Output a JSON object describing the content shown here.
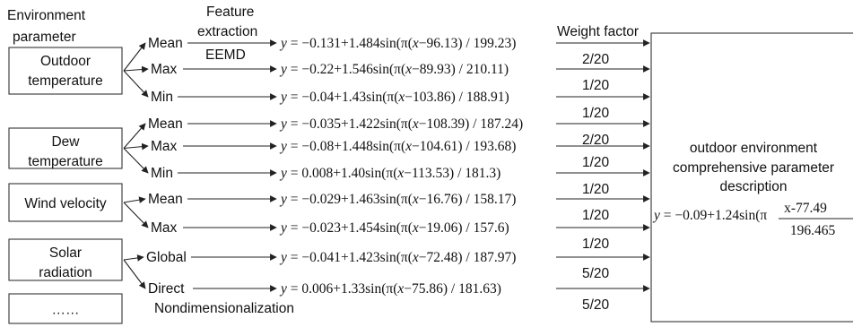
{
  "headers": {
    "env_param_line1": "Environment",
    "env_param_line2": "parameter",
    "feature_line1": "Feature",
    "feature_line2": "extraction",
    "eemd": "EEMD",
    "weight_factor": "Weight factor",
    "nondim": "Nondimensionalization"
  },
  "parameters": [
    {
      "line1": "Outdoor",
      "line2": "temperature"
    },
    {
      "line1": "Dew",
      "line2": "temperature"
    },
    {
      "line1": "Wind velocity",
      "line2": ""
    },
    {
      "line1": "Solar",
      "line2": "radiation"
    },
    {
      "line1": "……",
      "line2": ""
    }
  ],
  "features": [
    "Mean",
    "Max",
    "Min",
    "Mean",
    "Max",
    "Min",
    "Mean",
    "Max",
    "Global",
    "Direct"
  ],
  "equations": [
    {
      "a": "−0.131",
      "b": "1.484",
      "c": "96.13",
      "d": "199.23"
    },
    {
      "a": "−0.22",
      "b": "1.546",
      "c": "89.93",
      "d": "210.11"
    },
    {
      "a": "−0.04",
      "b": "1.43",
      "c": "103.86",
      "d": "188.91"
    },
    {
      "a": "−0.035",
      "b": "1.422",
      "c": "108.39",
      "d": "187.24"
    },
    {
      "a": "−0.08",
      "b": "1.448",
      "c": "104.61",
      "d": "193.68"
    },
    {
      "a": "0.008",
      "b": "1.40",
      "c": "113.53",
      "d": "181.3"
    },
    {
      "a": "−0.029",
      "b": "1.463",
      "c": "16.76",
      "d": "158.17"
    },
    {
      "a": "−0.023",
      "b": "1.454",
      "c": "19.06",
      "d": "157.6"
    },
    {
      "a": "−0.041",
      "b": "1.423",
      "c": "72.48",
      "d": "187.97"
    },
    {
      "a": "0.006",
      "b": "1.33",
      "c": "75.86",
      "d": "181.63"
    }
  ],
  "weights": [
    "2/20",
    "1/20",
    "1/20",
    "2/20",
    "1/20",
    "1/20",
    "1/20",
    "1/20",
    "5/20",
    "5/20"
  ],
  "output": {
    "line1": "outdoor environment",
    "line2": "comprehensive parameter",
    "line3": "description",
    "eq_a": "−0.09",
    "eq_b": "1.24",
    "eq_num": "x-77.49",
    "eq_den": "196.465"
  }
}
